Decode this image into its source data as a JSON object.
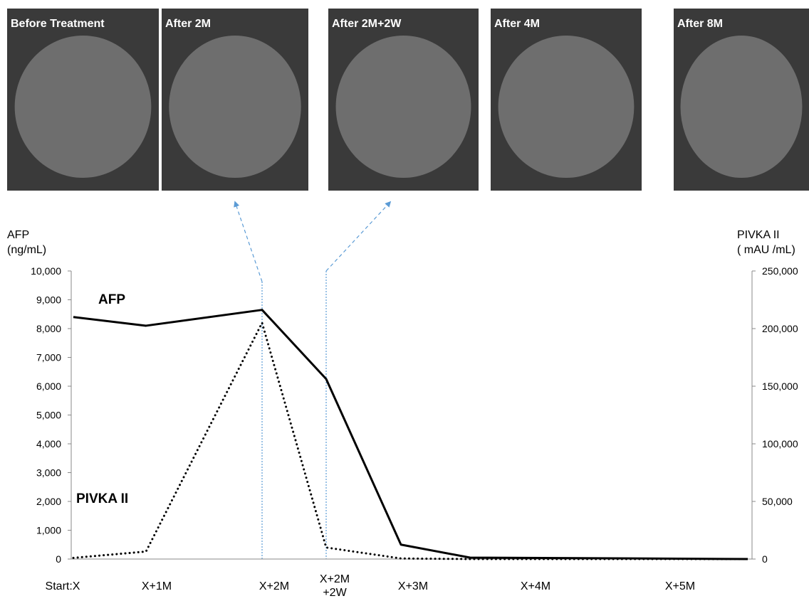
{
  "chart_data": {
    "type": "line",
    "panels": [
      "Before Treatment",
      "After 2M",
      "After 2M+2W",
      "After 4M",
      "After 8M"
    ],
    "y_label": "AFP\n(ng/mL)",
    "y2_label": "PIVKA II\n( mAU /mL)",
    "categories": [
      "Start:X",
      "X+1M",
      "X+2M",
      "X+2M\n+2W",
      "X+3M",
      "X+4M",
      "X+5M"
    ],
    "series": [
      {
        "name": "AFP",
        "color": "#000000",
        "style": "solid",
        "values": [
          8400,
          8100,
          8650,
          6250,
          500,
          50,
          0
        ]
      },
      {
        "name": "PIVKA II",
        "color": "#000000",
        "style": "dotted",
        "axis": "y2",
        "values": [
          1000,
          6500,
          205000,
          10000,
          500,
          0,
          0
        ]
      }
    ],
    "ylim": [
      0,
      10000
    ],
    "yticks": [
      0,
      {
        "value": 1000,
        "label": "1,000"
      },
      {
        "value": 2000,
        "label": "2,000"
      },
      {
        "value": 3000,
        "label": "3,000"
      },
      {
        "value": 4000,
        "label": "4,000"
      },
      {
        "value": 5000,
        "label": "5,000"
      },
      {
        "value": 6000,
        "label": "6,000"
      },
      {
        "value": 7000,
        "label": "7,000"
      },
      {
        "value": 8000,
        "label": "8,000"
      },
      {
        "value": 9000,
        "label": "9,000"
      },
      {
        "value": 10000,
        "label": "10,000"
      }
    ],
    "y2lim": [
      0,
      250000
    ],
    "y2ticks": [
      0,
      {
        "value": 50000,
        "label": "50,000"
      },
      {
        "value": 100000,
        "label": "100,000"
      },
      {
        "value": 150000,
        "label": "150,000"
      },
      {
        "value": 200000,
        "label": "200,000"
      },
      {
        "value": 250000,
        "label": "250,000"
      }
    ]
  }
}
